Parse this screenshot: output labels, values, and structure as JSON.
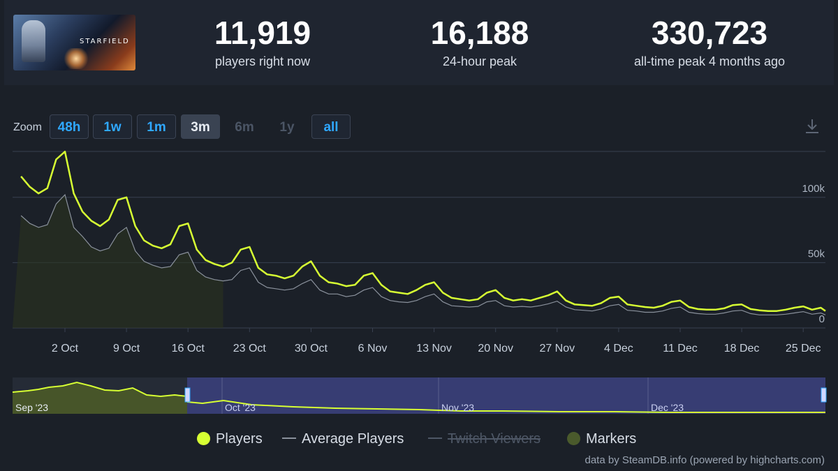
{
  "header": {
    "game_title": "STARFIELD",
    "stats": [
      {
        "value": "11,919",
        "label": "players right now"
      },
      {
        "value": "16,188",
        "label": "24-hour peak"
      },
      {
        "value": "330,723",
        "label": "all-time peak 4 months ago"
      }
    ]
  },
  "zoom": {
    "label": "Zoom",
    "buttons": [
      {
        "label": "48h",
        "state": "enabled"
      },
      {
        "label": "1w",
        "state": "enabled"
      },
      {
        "label": "1m",
        "state": "enabled"
      },
      {
        "label": "3m",
        "state": "active"
      },
      {
        "label": "6m",
        "state": "disabled"
      },
      {
        "label": "1y",
        "state": "disabled"
      },
      {
        "label": "all",
        "state": "enabled"
      }
    ]
  },
  "legend": {
    "players": "Players",
    "average": "Average Players",
    "twitch": "Twitch Viewers",
    "markers": "Markers"
  },
  "credits": "data by SteamDB.info (powered by highcharts.com)",
  "colors": {
    "players": "#d7ff33",
    "average": "#8a919c",
    "markers": "#4a5a2c",
    "navigator_selection": "#3a3f7a",
    "accent": "#2fa8ff"
  },
  "chart_data": {
    "type": "line",
    "x_unit": "date",
    "x_start": "2023-09-27",
    "xticks": [
      "2 Oct",
      "9 Oct",
      "16 Oct",
      "23 Oct",
      "30 Oct",
      "6 Nov",
      "13 Nov",
      "20 Nov",
      "27 Nov",
      "4 Dec",
      "11 Dec",
      "18 Dec",
      "25 Dec"
    ],
    "yticks": [
      "0",
      "50k",
      "100k"
    ],
    "ylim": [
      0,
      140000
    ],
    "grid": true,
    "legend_position": "bottom",
    "series": [
      {
        "name": "Players",
        "points": [
          [
            "2023-09-27",
            116000
          ],
          [
            "2023-09-28",
            108000
          ],
          [
            "2023-09-29",
            103000
          ],
          [
            "2023-09-30",
            107000
          ],
          [
            "2023-10-01",
            129000
          ],
          [
            "2023-10-02",
            135000
          ],
          [
            "2023-10-03",
            103000
          ],
          [
            "2023-10-04",
            89000
          ],
          [
            "2023-10-05",
            82000
          ],
          [
            "2023-10-06",
            78000
          ],
          [
            "2023-10-07",
            83000
          ],
          [
            "2023-10-08",
            98000
          ],
          [
            "2023-10-09",
            100000
          ],
          [
            "2023-10-10",
            78000
          ],
          [
            "2023-10-11",
            67000
          ],
          [
            "2023-10-12",
            63000
          ],
          [
            "2023-10-13",
            61000
          ],
          [
            "2023-10-14",
            64000
          ],
          [
            "2023-10-15",
            78000
          ],
          [
            "2023-10-16",
            80000
          ],
          [
            "2023-10-17",
            60000
          ],
          [
            "2023-10-18",
            52000
          ],
          [
            "2023-10-19",
            49000
          ],
          [
            "2023-10-20",
            47000
          ],
          [
            "2023-10-21",
            50000
          ],
          [
            "2023-10-22",
            60000
          ],
          [
            "2023-10-23",
            62000
          ],
          [
            "2023-10-24",
            46000
          ],
          [
            "2023-10-25",
            41000
          ],
          [
            "2023-10-26",
            40000
          ],
          [
            "2023-10-27",
            38000
          ],
          [
            "2023-10-28",
            40000
          ],
          [
            "2023-10-29",
            47000
          ],
          [
            "2023-10-30",
            51000
          ],
          [
            "2023-10-31",
            40000
          ],
          [
            "2023-11-01",
            35000
          ],
          [
            "2023-11-02",
            34000
          ],
          [
            "2023-11-03",
            32000
          ],
          [
            "2023-11-04",
            33000
          ],
          [
            "2023-11-05",
            40000
          ],
          [
            "2023-11-06",
            42000
          ],
          [
            "2023-11-07",
            33000
          ],
          [
            "2023-11-08",
            28000
          ],
          [
            "2023-11-09",
            27000
          ],
          [
            "2023-11-10",
            26000
          ],
          [
            "2023-11-11",
            29000
          ],
          [
            "2023-11-12",
            33000
          ],
          [
            "2023-11-13",
            35000
          ],
          [
            "2023-11-14",
            27000
          ],
          [
            "2023-11-15",
            23000
          ],
          [
            "2023-11-16",
            22000
          ],
          [
            "2023-11-17",
            21000
          ],
          [
            "2023-11-18",
            22000
          ],
          [
            "2023-11-19",
            27000
          ],
          [
            "2023-11-20",
            29000
          ],
          [
            "2023-11-21",
            23000
          ],
          [
            "2023-11-22",
            21000
          ],
          [
            "2023-11-23",
            22000
          ],
          [
            "2023-11-24",
            21000
          ],
          [
            "2023-11-25",
            23000
          ],
          [
            "2023-11-26",
            25000
          ],
          [
            "2023-11-27",
            28000
          ],
          [
            "2023-11-28",
            21000
          ],
          [
            "2023-11-29",
            18000
          ],
          [
            "2023-11-30",
            17500
          ],
          [
            "2023-12-01",
            17000
          ],
          [
            "2023-12-02",
            19000
          ],
          [
            "2023-12-03",
            23000
          ],
          [
            "2023-12-04",
            24000
          ],
          [
            "2023-12-05",
            18000
          ],
          [
            "2023-12-06",
            17000
          ],
          [
            "2023-12-07",
            16000
          ],
          [
            "2023-12-08",
            15500
          ],
          [
            "2023-12-09",
            17000
          ],
          [
            "2023-12-10",
            20000
          ],
          [
            "2023-12-11",
            21000
          ],
          [
            "2023-12-12",
            16000
          ],
          [
            "2023-12-13",
            14500
          ],
          [
            "2023-12-14",
            14000
          ],
          [
            "2023-12-15",
            14000
          ],
          [
            "2023-12-16",
            15000
          ],
          [
            "2023-12-17",
            17500
          ],
          [
            "2023-12-18",
            18000
          ],
          [
            "2023-12-19",
            14500
          ],
          [
            "2023-12-20",
            13500
          ],
          [
            "2023-12-21",
            13000
          ],
          [
            "2023-12-22",
            13000
          ],
          [
            "2023-12-23",
            14000
          ],
          [
            "2023-12-24",
            15500
          ],
          [
            "2023-12-25",
            16500
          ],
          [
            "2023-12-26",
            14000
          ],
          [
            "2023-12-27",
            15500
          ],
          [
            "2023-12-28",
            13000
          ]
        ]
      },
      {
        "name": "Average Players",
        "points": [
          [
            "2023-09-27",
            86000
          ],
          [
            "2023-09-28",
            80000
          ],
          [
            "2023-09-29",
            77000
          ],
          [
            "2023-09-30",
            79000
          ],
          [
            "2023-10-01",
            95000
          ],
          [
            "2023-10-02",
            102000
          ],
          [
            "2023-10-03",
            77000
          ],
          [
            "2023-10-04",
            70000
          ],
          [
            "2023-10-05",
            62000
          ],
          [
            "2023-10-06",
            59000
          ],
          [
            "2023-10-07",
            61000
          ],
          [
            "2023-10-08",
            72000
          ],
          [
            "2023-10-09",
            77000
          ],
          [
            "2023-10-10",
            59000
          ],
          [
            "2023-10-11",
            51000
          ],
          [
            "2023-10-12",
            48000
          ],
          [
            "2023-10-13",
            46000
          ],
          [
            "2023-10-14",
            47000
          ],
          [
            "2023-10-15",
            56000
          ],
          [
            "2023-10-16",
            58000
          ],
          [
            "2023-10-17",
            44000
          ],
          [
            "2023-10-18",
            39000
          ],
          [
            "2023-10-19",
            37000
          ],
          [
            "2023-10-20",
            36000
          ],
          [
            "2023-10-21",
            37000
          ],
          [
            "2023-10-22",
            44000
          ],
          [
            "2023-10-23",
            46000
          ],
          [
            "2023-10-24",
            35000
          ],
          [
            "2023-10-25",
            31000
          ],
          [
            "2023-10-26",
            30000
          ],
          [
            "2023-10-27",
            29000
          ],
          [
            "2023-10-28",
            30000
          ],
          [
            "2023-10-29",
            34000
          ],
          [
            "2023-10-30",
            37000
          ],
          [
            "2023-10-31",
            29000
          ],
          [
            "2023-11-01",
            26000
          ],
          [
            "2023-11-02",
            26000
          ],
          [
            "2023-11-03",
            24000
          ],
          [
            "2023-11-04",
            25000
          ],
          [
            "2023-11-05",
            29000
          ],
          [
            "2023-11-06",
            31000
          ],
          [
            "2023-11-07",
            24000
          ],
          [
            "2023-11-08",
            21000
          ],
          [
            "2023-11-09",
            20000
          ],
          [
            "2023-11-10",
            19500
          ],
          [
            "2023-11-11",
            21000
          ],
          [
            "2023-11-12",
            24000
          ],
          [
            "2023-11-13",
            26000
          ],
          [
            "2023-11-14",
            20000
          ],
          [
            "2023-11-15",
            17000
          ],
          [
            "2023-11-16",
            16500
          ],
          [
            "2023-11-17",
            16000
          ],
          [
            "2023-11-18",
            16500
          ],
          [
            "2023-11-19",
            20000
          ],
          [
            "2023-11-20",
            21000
          ],
          [
            "2023-11-21",
            17000
          ],
          [
            "2023-11-22",
            16000
          ],
          [
            "2023-11-23",
            16500
          ],
          [
            "2023-11-24",
            16000
          ],
          [
            "2023-11-25",
            17000
          ],
          [
            "2023-11-26",
            18500
          ],
          [
            "2023-11-27",
            20500
          ],
          [
            "2023-11-28",
            16000
          ],
          [
            "2023-11-29",
            14000
          ],
          [
            "2023-11-30",
            13500
          ],
          [
            "2023-12-01",
            13000
          ],
          [
            "2023-12-02",
            14500
          ],
          [
            "2023-12-03",
            17000
          ],
          [
            "2023-12-04",
            18000
          ],
          [
            "2023-12-05",
            13500
          ],
          [
            "2023-12-06",
            13000
          ],
          [
            "2023-12-07",
            12000
          ],
          [
            "2023-12-08",
            12000
          ],
          [
            "2023-12-09",
            13000
          ],
          [
            "2023-12-10",
            15000
          ],
          [
            "2023-12-11",
            16000
          ],
          [
            "2023-12-12",
            12000
          ],
          [
            "2023-12-13",
            11000
          ],
          [
            "2023-12-14",
            10500
          ],
          [
            "2023-12-15",
            10500
          ],
          [
            "2023-12-16",
            11500
          ],
          [
            "2023-12-17",
            13000
          ],
          [
            "2023-12-18",
            13500
          ],
          [
            "2023-12-19",
            11000
          ],
          [
            "2023-12-20",
            10000
          ],
          [
            "2023-12-21",
            10000
          ],
          [
            "2023-12-22",
            10000
          ],
          [
            "2023-12-23",
            10500
          ],
          [
            "2023-12-24",
            11500
          ],
          [
            "2023-12-25",
            12500
          ],
          [
            "2023-12-26",
            10500
          ],
          [
            "2023-12-27",
            11500
          ],
          [
            "2023-12-28",
            10000
          ]
        ]
      }
    ],
    "twitch_series_hidden": true,
    "navigator": {
      "labels": [
        "Sep '23",
        "Oct '23",
        "Nov '23",
        "Dec '23"
      ],
      "selection_start": "2023-09-27",
      "selection_end": "2023-12-28"
    }
  }
}
